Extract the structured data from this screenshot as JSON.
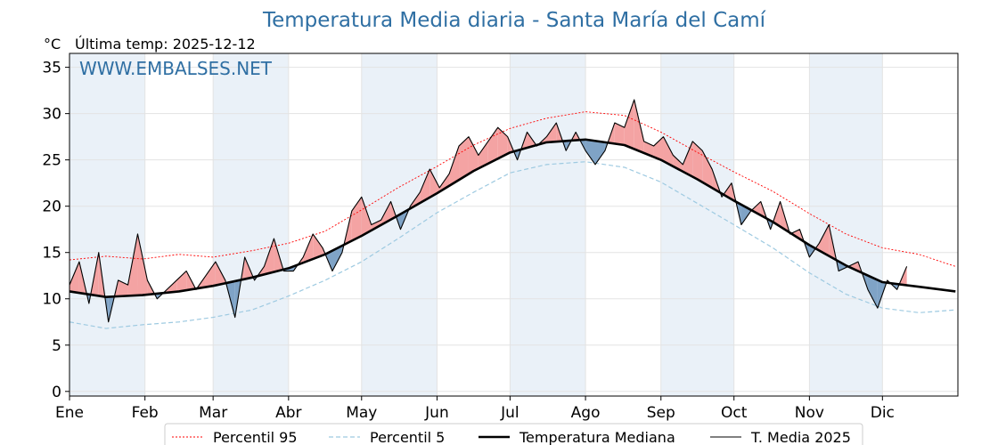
{
  "chart_data": {
    "type": "line",
    "title": "Temperatura Media diaria - Santa María del Camí",
    "unit_label": "°C",
    "last_temp_label": "Última temp: 2025-12-12",
    "watermark": "WWW.EMBALSES.NET",
    "ylim": [
      -0.5,
      36.5
    ],
    "yticks": [
      0,
      5,
      10,
      15,
      20,
      25,
      30,
      35
    ],
    "x_range_days": [
      0,
      365
    ],
    "months": [
      "Ene",
      "Feb",
      "Mar",
      "Abr",
      "May",
      "Jun",
      "Jul",
      "Ago",
      "Sep",
      "Oct",
      "Nov",
      "Dic"
    ],
    "month_start_day": [
      0,
      31,
      59,
      90,
      120,
      151,
      181,
      212,
      243,
      273,
      304,
      334
    ],
    "grid": true,
    "alternating_month_bands": true,
    "legend_position": "bottom-center",
    "colors": {
      "p95": "#ff0000",
      "p5": "#9ecae1",
      "median": "#000000",
      "year": "#000000",
      "above_fill": "#f4a3a3",
      "below_fill": "#7fa3c6",
      "title": "#2f6fa3",
      "band": "#eaf1f8"
    },
    "series": [
      {
        "name": "Percentil 95",
        "style": "dotted",
        "x": [
          0,
          15,
          30,
          45,
          59,
          75,
          90,
          105,
          120,
          135,
          151,
          166,
          181,
          196,
          212,
          228,
          243,
          258,
          273,
          289,
          304,
          319,
          334,
          349,
          364
        ],
        "y": [
          14.2,
          14.6,
          14.3,
          14.8,
          14.5,
          15.2,
          16.0,
          17.3,
          19.6,
          22.0,
          24.3,
          26.6,
          28.4,
          29.5,
          30.2,
          29.8,
          28.0,
          25.8,
          23.7,
          21.6,
          19.2,
          17.0,
          15.5,
          14.8,
          13.5
        ]
      },
      {
        "name": "Percentil 5",
        "style": "dashed",
        "x": [
          0,
          15,
          30,
          45,
          59,
          75,
          90,
          105,
          120,
          135,
          151,
          166,
          181,
          196,
          212,
          228,
          243,
          258,
          273,
          289,
          304,
          319,
          334,
          349,
          364
        ],
        "y": [
          7.5,
          6.8,
          7.2,
          7.5,
          8.0,
          8.8,
          10.3,
          12.0,
          14.0,
          16.5,
          19.3,
          21.5,
          23.6,
          24.5,
          24.8,
          24.2,
          22.6,
          20.3,
          18.0,
          15.5,
          12.8,
          10.5,
          9.0,
          8.5,
          8.8
        ]
      },
      {
        "name": "Temperatura Mediana",
        "style": "thick",
        "x": [
          0,
          15,
          30,
          45,
          59,
          75,
          90,
          105,
          120,
          135,
          151,
          166,
          181,
          196,
          212,
          228,
          243,
          258,
          273,
          289,
          304,
          319,
          334,
          349,
          364
        ],
        "y": [
          10.8,
          10.2,
          10.4,
          10.8,
          11.4,
          12.3,
          13.3,
          14.8,
          16.8,
          19.0,
          21.4,
          23.8,
          25.8,
          26.9,
          27.2,
          26.6,
          25.0,
          22.9,
          20.6,
          18.3,
          15.8,
          13.6,
          11.8,
          11.3,
          10.8
        ]
      },
      {
        "name": "T. Media 2025",
        "style": "thin",
        "x": [
          0,
          4,
          8,
          12,
          16,
          20,
          24,
          28,
          32,
          36,
          40,
          44,
          48,
          52,
          56,
          60,
          64,
          68,
          72,
          76,
          80,
          84,
          88,
          92,
          96,
          100,
          104,
          108,
          112,
          116,
          120,
          124,
          128,
          132,
          136,
          140,
          144,
          148,
          152,
          156,
          160,
          164,
          168,
          172,
          176,
          180,
          184,
          188,
          192,
          196,
          200,
          204,
          208,
          212,
          216,
          220,
          224,
          228,
          232,
          236,
          240,
          244,
          248,
          252,
          256,
          260,
          264,
          268,
          272,
          276,
          280,
          284,
          288,
          292,
          296,
          300,
          304,
          308,
          312,
          316,
          320,
          324,
          328,
          332,
          336,
          340,
          344
        ],
        "y": [
          11.5,
          14.0,
          9.5,
          15.0,
          7.5,
          12.0,
          11.5,
          17.0,
          12.0,
          10.0,
          11.0,
          12.0,
          13.0,
          11.0,
          12.5,
          14.0,
          12.0,
          8.0,
          14.5,
          12.0,
          13.5,
          16.5,
          13.0,
          13.0,
          14.5,
          17.0,
          15.5,
          13.0,
          15.0,
          19.5,
          21.0,
          18.0,
          18.5,
          20.5,
          17.5,
          20.0,
          21.5,
          24.0,
          22.0,
          23.5,
          26.5,
          27.5,
          25.5,
          27.0,
          28.5,
          27.5,
          25.0,
          28.0,
          26.5,
          27.5,
          29.0,
          26.0,
          28.0,
          26.0,
          24.5,
          26.0,
          29.0,
          28.5,
          31.5,
          27.0,
          26.5,
          27.5,
          25.5,
          24.5,
          27.0,
          26.0,
          24.0,
          21.0,
          22.5,
          18.0,
          19.5,
          20.5,
          17.5,
          20.5,
          17.0,
          17.5,
          14.5,
          16.0,
          18.0,
          13.0,
          13.5,
          14.0,
          11.0,
          9.0,
          12.0,
          11.0,
          13.5
        ]
      }
    ],
    "legend": [
      {
        "label": "Percentil 95",
        "style": "dotted",
        "color": "#ff0000"
      },
      {
        "label": "Percentil 5",
        "style": "dashed",
        "color": "#9ecae1"
      },
      {
        "label": "Temperatura Mediana",
        "style": "thick",
        "color": "#000000"
      },
      {
        "label": "T. Media 2025",
        "style": "thin",
        "color": "#000000"
      }
    ]
  }
}
